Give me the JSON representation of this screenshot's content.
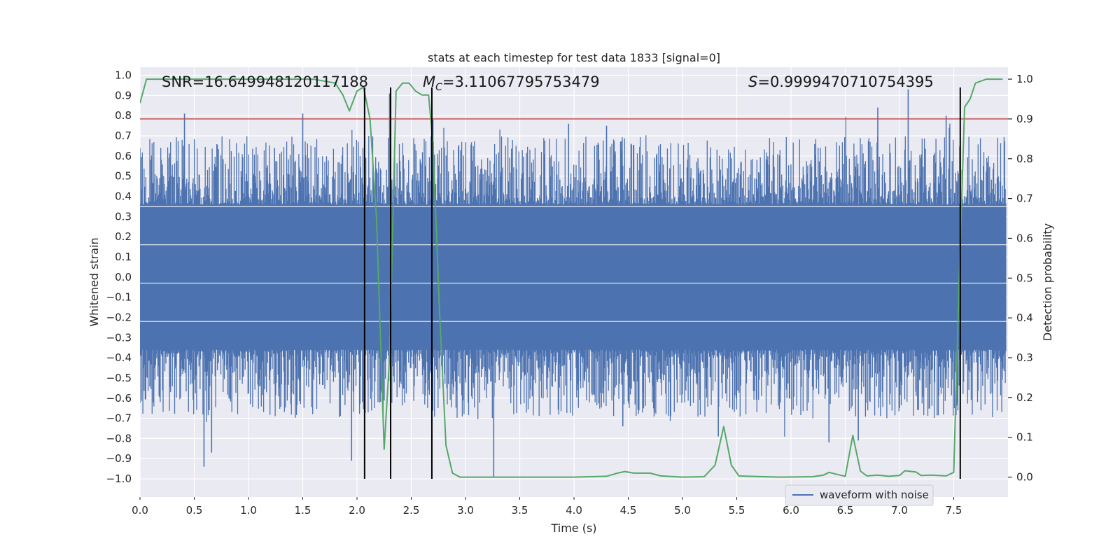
{
  "chart_data": {
    "type": "line",
    "title": "stats at each timestep for test data 1833 [signal=0]",
    "xlabel": "Time (s)",
    "ylabel_left": "Whitened strain",
    "ylabel_right": "Detection probability",
    "xlim": [
      0.0,
      8.0
    ],
    "ylim_left": [
      -1.09,
      1.04
    ],
    "ylim_right": [
      -0.05,
      1.03
    ],
    "x_ticks": [
      0.0,
      0.5,
      1.0,
      1.5,
      2.0,
      2.5,
      3.0,
      3.5,
      4.0,
      4.5,
      5.0,
      5.5,
      6.0,
      6.5,
      7.0,
      7.5
    ],
    "x_tick_labels": [
      "0.0",
      "0.5",
      "1.0",
      "1.5",
      "2.0",
      "2.5",
      "3.0",
      "3.5",
      "4.0",
      "4.5",
      "5.0",
      "5.5",
      "6.0",
      "6.5",
      "7.0",
      "7.5"
    ],
    "y_left_ticks": [
      1.0,
      0.9,
      0.8,
      0.7,
      0.6,
      0.5,
      0.4,
      0.3,
      0.2,
      0.1,
      0.0,
      -0.1,
      -0.2,
      -0.3,
      -0.4,
      -0.5,
      -0.6,
      -0.7,
      -0.8,
      -0.9,
      -1.0
    ],
    "y_left_tick_labels": [
      "1.0",
      "0.9",
      "0.8",
      "0.7",
      "0.6",
      "0.5",
      "0.4",
      "0.3",
      "0.2",
      "0.1",
      "0.0",
      "−0.1",
      "−0.2",
      "−0.3",
      "−0.4",
      "−0.5",
      "−0.6",
      "−0.7",
      "−0.8",
      "−0.9",
      "−1.0"
    ],
    "y_right_ticks": [
      1.0,
      0.9,
      0.8,
      0.7,
      0.6,
      0.5,
      0.4,
      0.3,
      0.2,
      0.1,
      0.0
    ],
    "y_right_tick_labels": [
      "1.0",
      "0.9",
      "0.8",
      "0.7",
      "0.6",
      "0.5",
      "0.4",
      "0.3",
      "0.2",
      "0.1",
      "0.0"
    ],
    "series": [
      {
        "name": "waveform with noise",
        "axis": "left",
        "color": "#4c72b0",
        "kind": "noise",
        "x_range": [
          0.0,
          7.98
        ],
        "core_band": [
          -0.36,
          0.36
        ],
        "spikes": [
          {
            "x": 0.41,
            "y": 0.81
          },
          {
            "x": 0.59,
            "y": -0.94
          },
          {
            "x": 0.66,
            "y": -0.87
          },
          {
            "x": 1.24,
            "y": 0.64
          },
          {
            "x": 1.5,
            "y": 0.81
          },
          {
            "x": 1.95,
            "y": -0.91
          },
          {
            "x": 2.3,
            "y": 0.91
          },
          {
            "x": 2.7,
            "y": 0.78
          },
          {
            "x": 3.26,
            "y": -0.99
          },
          {
            "x": 3.95,
            "y": 0.76
          },
          {
            "x": 4.3,
            "y": 0.75
          },
          {
            "x": 4.45,
            "y": -0.74
          },
          {
            "x": 5.33,
            "y": -0.79
          },
          {
            "x": 6.35,
            "y": -0.82
          },
          {
            "x": 6.62,
            "y": -0.81
          },
          {
            "x": 6.8,
            "y": 0.84
          },
          {
            "x": 7.08,
            "y": 0.93
          },
          {
            "x": 7.43,
            "y": 0.8
          }
        ]
      },
      {
        "name": "detection probability",
        "axis": "right",
        "color": "#55a868",
        "x": [
          0.0,
          0.06,
          0.12,
          0.2,
          0.4,
          0.6,
          0.8,
          1.0,
          1.2,
          1.4,
          1.6,
          1.8,
          1.87,
          1.93,
          2.0,
          2.06,
          2.12,
          2.18,
          2.25,
          2.3,
          2.36,
          2.42,
          2.48,
          2.54,
          2.6,
          2.66,
          2.7,
          2.76,
          2.82,
          2.88,
          2.95,
          3.02,
          3.1,
          3.5,
          4.0,
          4.3,
          4.4,
          4.47,
          4.55,
          4.7,
          4.8,
          5.0,
          5.2,
          5.3,
          5.38,
          5.45,
          5.52,
          5.6,
          5.9,
          6.2,
          6.3,
          6.35,
          6.45,
          6.5,
          6.57,
          6.64,
          6.7,
          6.8,
          6.9,
          7.0,
          7.05,
          7.15,
          7.2,
          7.3,
          7.43,
          7.5,
          7.55,
          7.6,
          7.65,
          7.7,
          7.8,
          7.95
        ],
        "y": [
          0.94,
          1.0,
          1.0,
          1.0,
          1.0,
          1.0,
          1.0,
          1.0,
          1.0,
          1.0,
          1.0,
          0.99,
          0.96,
          0.92,
          0.97,
          0.98,
          0.9,
          0.65,
          0.07,
          0.3,
          0.97,
          0.99,
          0.99,
          0.97,
          0.96,
          0.96,
          0.84,
          0.42,
          0.08,
          0.01,
          0.0,
          0.0,
          0.0,
          0.0,
          0.0,
          0.002,
          0.01,
          0.014,
          0.01,
          0.01,
          0.003,
          0.0,
          0.001,
          0.03,
          0.127,
          0.03,
          0.003,
          0.002,
          0.0,
          0.001,
          0.005,
          0.012,
          0.005,
          0.002,
          0.105,
          0.015,
          0.003,
          0.005,
          0.002,
          0.004,
          0.016,
          0.013,
          0.004,
          0.005,
          0.003,
          0.012,
          0.5,
          0.93,
          0.95,
          0.99,
          1.0,
          1.0
        ]
      }
    ],
    "threshold_line": {
      "axis": "right",
      "value": 0.9,
      "color": "#c44e52"
    },
    "vertical_lines": {
      "x": [
        2.07,
        2.31,
        2.69,
        7.56
      ],
      "ymin": -1.0,
      "ymax": 0.94,
      "color": "#000000"
    },
    "annotations": [
      {
        "text": "SNR=16.649948120117188",
        "x": 0.19,
        "y": 0.935
      },
      {
        "text": "=3.11067795753479",
        "math_prefix": "M",
        "math_sub": "C",
        "x": 2.6,
        "y": 0.935
      },
      {
        "text": "=0.9999470710754395",
        "math_prefix": "S",
        "x": 5.6,
        "y": 0.935
      }
    ],
    "legend": {
      "entries": [
        "waveform with noise"
      ],
      "position": "lower-right"
    },
    "grid": true,
    "background": "#eaeaf2"
  }
}
